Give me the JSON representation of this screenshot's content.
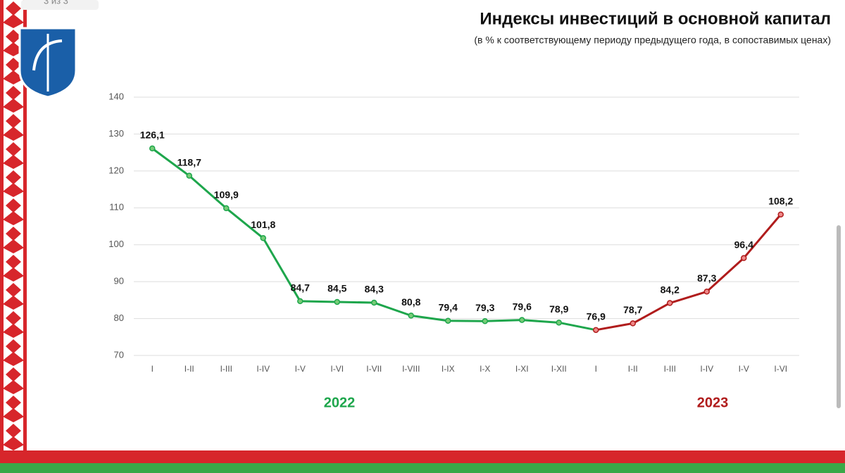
{
  "page_indicator": "3 из 3",
  "chart_data": {
    "type": "line",
    "title": "Индексы инвестиций в основной капитал",
    "subtitle": "(в % к соответствующему периоду предыдущего года, в сопоставимых ценах)",
    "categories": [
      "I",
      "I-II",
      "I-III",
      "I-IV",
      "I-V",
      "I-VI",
      "I-VII",
      "I-VIII",
      "I-IX",
      "I-X",
      "I-XI",
      "I-XII",
      "I",
      "I-II",
      "I-III",
      "I-IV",
      "I-V",
      "I-VI"
    ],
    "series": [
      {
        "name": "2022",
        "color": "#1ea64c",
        "values": [
          126.1,
          118.7,
          109.9,
          101.8,
          84.7,
          84.5,
          84.3,
          80.8,
          79.4,
          79.3,
          79.6,
          78.9,
          null,
          null,
          null,
          null,
          null,
          null
        ],
        "value_labels": [
          "126,1",
          "118,7",
          "109,9",
          "101,8",
          "84,7",
          "84,5",
          "84,3",
          "80,8",
          "79,4",
          "79,3",
          "79,6",
          "78,9",
          null,
          null,
          null,
          null,
          null,
          null
        ]
      },
      {
        "name": "2023",
        "color": "#b01c1c",
        "values": [
          null,
          null,
          null,
          null,
          null,
          null,
          null,
          null,
          null,
          null,
          null,
          null,
          76.9,
          78.7,
          84.2,
          87.3,
          96.4,
          108.2
        ],
        "value_labels": [
          null,
          null,
          null,
          null,
          null,
          null,
          null,
          null,
          null,
          null,
          null,
          null,
          "76,9",
          "78,7",
          "84,2",
          "87,3",
          "96,4",
          "108,2"
        ]
      }
    ],
    "ylim": [
      70,
      140
    ],
    "yticks": [
      70,
      80,
      90,
      100,
      110,
      120,
      130,
      140
    ],
    "grid": true
  }
}
